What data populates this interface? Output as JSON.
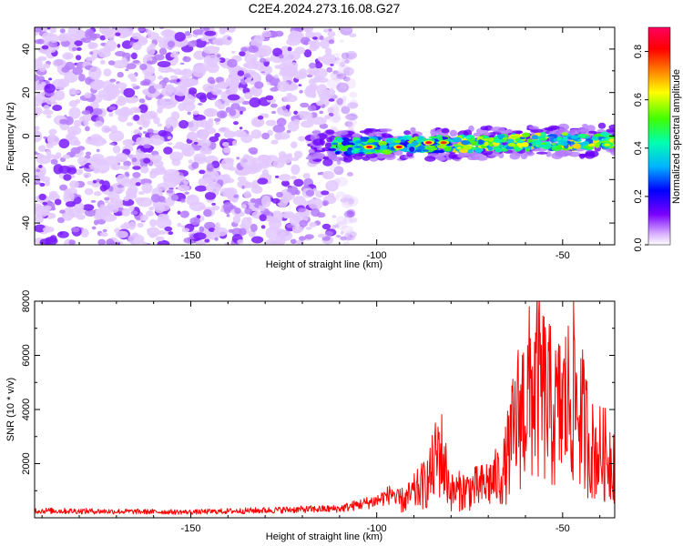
{
  "title": "C2E4.2024.273.16.08.G27",
  "chart_data": [
    {
      "type": "heatmap",
      "xlabel": "Height of straight line (km)",
      "ylabel": "Frequency (Hz)",
      "xlim": [
        -192,
        -36
      ],
      "ylim": [
        -50,
        50
      ],
      "xticks": [
        -150,
        -100,
        -50
      ],
      "yticks": [
        -40,
        -20,
        0,
        20,
        40
      ],
      "colorbar": {
        "label": "Normalized spectral amplitude",
        "range": [
          0,
          0.9
        ],
        "ticks": [
          0.0,
          0.2,
          0.4,
          0.6,
          0.8
        ]
      },
      "noise_region_x": [
        -192,
        -106
      ],
      "signal_band": {
        "x_range": [
          -118,
          -36
        ],
        "frequency_center_start": -5,
        "frequency_center_end": -2,
        "peaks": [
          {
            "x": -102,
            "y": -5,
            "amplitude": 0.85
          },
          {
            "x": -94,
            "y": -5,
            "amplitude": 0.82
          },
          {
            "x": -86,
            "y": -3,
            "amplitude": 0.85
          },
          {
            "x": -82,
            "y": -3,
            "amplitude": 0.78
          },
          {
            "x": -38,
            "y": -4,
            "amplitude": 0.6
          }
        ]
      }
    },
    {
      "type": "line",
      "xlabel": "Height of straight line (km)",
      "ylabel": "SNR (10 * v/v)",
      "xlim": [
        -192,
        -36
      ],
      "ylim": [
        0,
        8000
      ],
      "xticks": [
        -150,
        -100,
        -50
      ],
      "yticks": [
        2000,
        4000,
        6000,
        8000
      ],
      "color": "#ff0000",
      "series_profile": [
        {
          "x": -192,
          "y": 250
        },
        {
          "x": -150,
          "y": 200
        },
        {
          "x": -125,
          "y": 280
        },
        {
          "x": -110,
          "y": 320
        },
        {
          "x": -100,
          "y": 600
        },
        {
          "x": -92,
          "y": 1100
        },
        {
          "x": -86,
          "y": 2200
        },
        {
          "x": -83,
          "y": 4100
        },
        {
          "x": -80,
          "y": 1500
        },
        {
          "x": -72,
          "y": 1800
        },
        {
          "x": -66,
          "y": 2600
        },
        {
          "x": -62,
          "y": 6000
        },
        {
          "x": -57,
          "y": 8000
        },
        {
          "x": -52,
          "y": 6000
        },
        {
          "x": -47,
          "y": 7300
        },
        {
          "x": -42,
          "y": 4000
        },
        {
          "x": -36,
          "y": 3500
        }
      ]
    }
  ]
}
